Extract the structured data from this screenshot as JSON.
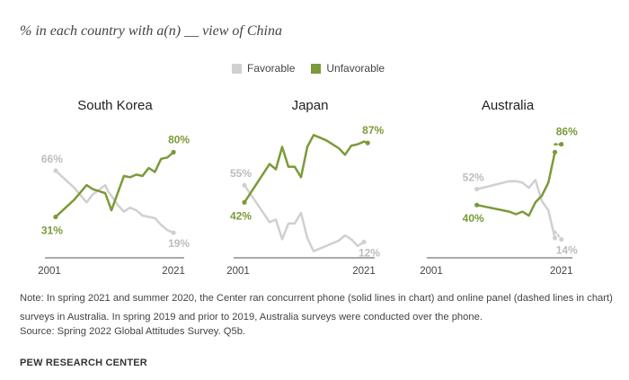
{
  "subtitle": "% in each country with a(n) __ view of China",
  "legend": [
    {
      "label": "Favorable",
      "color": "#d0d0d0"
    },
    {
      "label": "Unfavorable",
      "color": "#7b9a3a"
    }
  ],
  "colors": {
    "favorable": "#d0d0d0",
    "unfavorable": "#7b9a3a",
    "fav_label": "#bdbdbd",
    "axis": "#555555"
  },
  "chart_data": [
    {
      "type": "line",
      "title": "South Korea",
      "x_tick_labels": [
        "2001",
        "2021"
      ],
      "xlim": [
        2001,
        2022
      ],
      "ylim": [
        0,
        100
      ],
      "series": [
        {
          "name": "Favorable",
          "points": [
            [
              2002,
              66
            ],
            [
              2005,
              53
            ],
            [
              2007,
              42
            ],
            [
              2008,
              48
            ],
            [
              2010,
              55
            ],
            [
              2010.5,
              50
            ],
            [
              2011,
              47
            ],
            [
              2012,
              40
            ],
            [
              2013,
              35
            ],
            [
              2014,
              38
            ],
            [
              2015,
              36
            ],
            [
              2016,
              32
            ],
            [
              2017,
              31
            ],
            [
              2018,
              30
            ],
            [
              2019,
              25
            ],
            [
              2020,
              21
            ],
            [
              2021,
              19
            ]
          ]
        },
        {
          "name": "Unfavorable",
          "points": [
            [
              2002,
              31
            ],
            [
              2005,
              44
            ],
            [
              2007,
              55
            ],
            [
              2008,
              52
            ],
            [
              2010,
              49
            ],
            [
              2011,
              36
            ],
            [
              2013,
              62
            ],
            [
              2014,
              61
            ],
            [
              2015,
              63
            ],
            [
              2016,
              62
            ],
            [
              2017,
              68
            ],
            [
              2018,
              65
            ],
            [
              2019,
              75
            ],
            [
              2020,
              76
            ],
            [
              2021,
              80
            ]
          ]
        }
      ],
      "end_labels": {
        "favorable_start": "66%",
        "favorable_end": "19%",
        "unfavorable_start": "31%",
        "unfavorable_end": "80%"
      }
    },
    {
      "type": "line",
      "title": "Japan",
      "x_tick_labels": [
        "2001",
        "2021"
      ],
      "xlim": [
        2001,
        2022
      ],
      "ylim": [
        0,
        100
      ],
      "series": [
        {
          "name": "Favorable",
          "points": [
            [
              2002,
              55
            ],
            [
              2006,
              27
            ],
            [
              2007,
              29
            ],
            [
              2008,
              14
            ],
            [
              2009,
              26
            ],
            [
              2010,
              26
            ],
            [
              2011,
              34
            ],
            [
              2012,
              15
            ],
            [
              2013,
              5
            ],
            [
              2014,
              7
            ],
            [
              2015,
              9
            ],
            [
              2016,
              11
            ],
            [
              2017,
              13
            ],
            [
              2018,
              17
            ],
            [
              2019,
              14
            ],
            [
              2020,
              9
            ],
            [
              2021,
              12
            ]
          ]
        },
        {
          "name": "Unfavorable",
          "points": [
            [
              2002,
              42
            ],
            [
              2006,
              71
            ],
            [
              2007,
              67
            ],
            [
              2008,
              84
            ],
            [
              2009,
              69
            ],
            [
              2010,
              69
            ],
            [
              2011,
              61
            ],
            [
              2012,
              84
            ],
            [
              2013,
              93
            ],
            [
              2014,
              91
            ],
            [
              2015,
              89
            ],
            [
              2016,
              86
            ],
            [
              2017,
              83
            ],
            [
              2018,
              78
            ],
            [
              2019,
              85
            ],
            [
              2020,
              86
            ],
            [
              2021,
              88
            ],
            [
              2021.6,
              87
            ]
          ]
        }
      ],
      "end_labels": {
        "favorable_start": "55%",
        "favorable_end": "12%",
        "unfavorable_start": "42%",
        "unfavorable_end": "87%"
      }
    },
    {
      "type": "line",
      "title": "Australia",
      "x_tick_labels": [
        "2001",
        "2021"
      ],
      "xlim": [
        2001,
        2022
      ],
      "ylim": [
        0,
        100
      ],
      "series": [
        {
          "name": "Favorable",
          "points": [
            [
              2008,
              52
            ],
            [
              2013,
              58
            ],
            [
              2014,
              58
            ],
            [
              2015,
              57
            ],
            [
              2016,
              53
            ],
            [
              2017,
              59
            ],
            [
              2018,
              43
            ],
            [
              2019,
              36
            ],
            [
              2020,
              15
            ]
          ]
        },
        {
          "name": "Unfavorable",
          "points": [
            [
              2008,
              40
            ],
            [
              2013,
              35
            ],
            [
              2014,
              33
            ],
            [
              2015,
              35
            ],
            [
              2016,
              32
            ],
            [
              2017,
              42
            ],
            [
              2018,
              47
            ],
            [
              2019,
              57
            ],
            [
              2020,
              80
            ]
          ]
        },
        {
          "name": "Favorable",
          "dashed": true,
          "points": [
            [
              2020,
              20
            ],
            [
              2021,
              14
            ]
          ]
        },
        {
          "name": "Unfavorable",
          "dashed": true,
          "points": [
            [
              2020,
              86
            ],
            [
              2021,
              86
            ]
          ]
        }
      ],
      "end_labels": {
        "favorable_start": "52%",
        "favorable_end": "14%",
        "unfavorable_start": "40%",
        "unfavorable_end": "86%"
      }
    }
  ],
  "note": "Note: In spring 2021 and summer 2020, the Center ran concurrent phone (solid lines in chart) and online panel (dashed lines in chart) surveys in Australia. In spring 2019 and prior to 2019, Australia surveys were conducted over the phone.",
  "source": "Source: Spring 2022 Global Attitudes Survey. Q5b.",
  "brand": "PEW RESEARCH CENTER"
}
